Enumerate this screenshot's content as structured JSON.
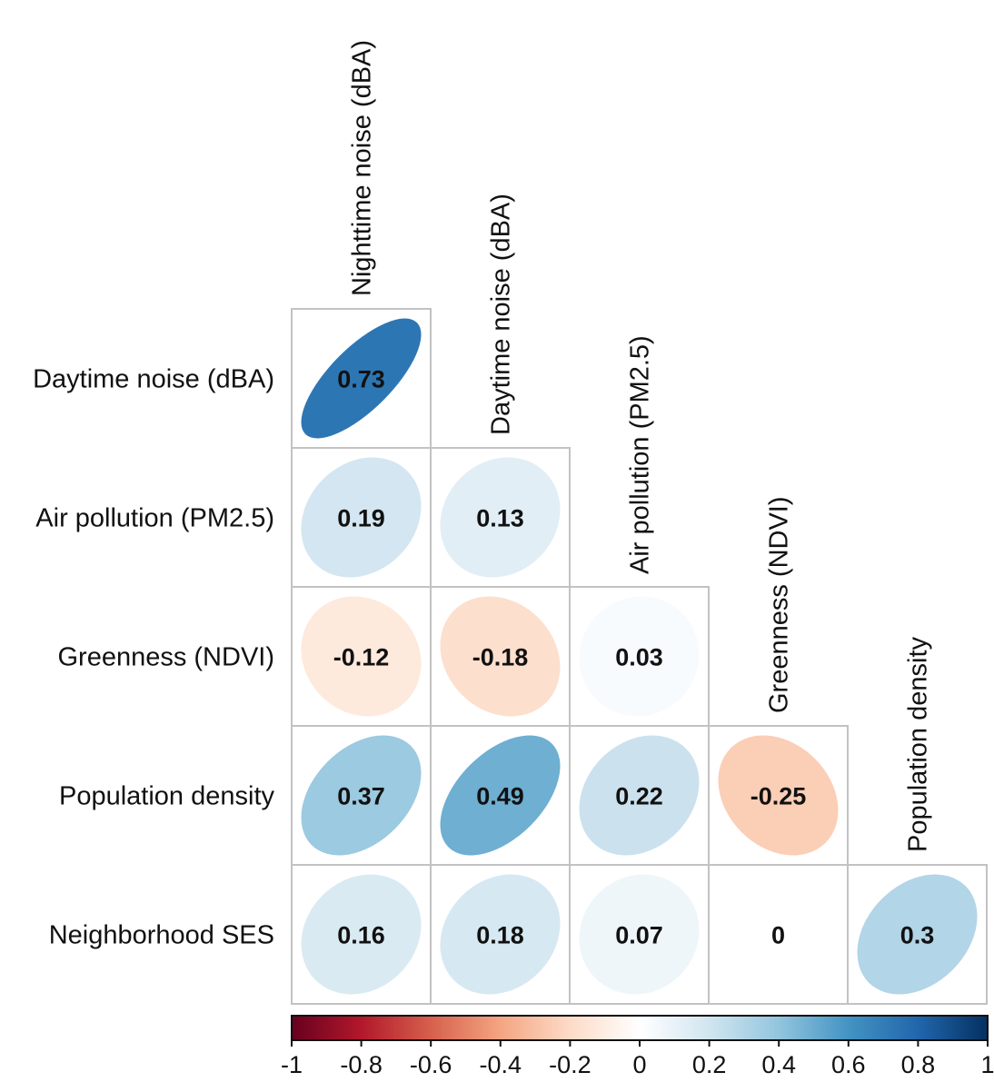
{
  "chart_data": {
    "type": "heatmap",
    "variant": "correlation-ellipse-lower-triangle",
    "title": "",
    "row_labels": [
      "Daytime noise (dBA)",
      "Air pollution (PM2.5)",
      "Greenness (NDVI)",
      "Population density",
      "Neighborhood SES"
    ],
    "col_labels": [
      "Nighttime noise (dBA)",
      "Daytime noise (dBA)",
      "Air pollution (PM2.5)",
      "Greenness (NDVI)",
      "Population density"
    ],
    "cells": [
      {
        "row": 0,
        "col": 0,
        "value": 0.73,
        "label": "0.73"
      },
      {
        "row": 1,
        "col": 0,
        "value": 0.19,
        "label": "0.19"
      },
      {
        "row": 1,
        "col": 1,
        "value": 0.13,
        "label": "0.13"
      },
      {
        "row": 2,
        "col": 0,
        "value": -0.12,
        "label": "-0.12"
      },
      {
        "row": 2,
        "col": 1,
        "value": -0.18,
        "label": "-0.18"
      },
      {
        "row": 2,
        "col": 2,
        "value": 0.03,
        "label": "0.03"
      },
      {
        "row": 3,
        "col": 0,
        "value": 0.37,
        "label": "0.37"
      },
      {
        "row": 3,
        "col": 1,
        "value": 0.49,
        "label": "0.49"
      },
      {
        "row": 3,
        "col": 2,
        "value": 0.22,
        "label": "0.22"
      },
      {
        "row": 3,
        "col": 3,
        "value": -0.25,
        "label": "-0.25"
      },
      {
        "row": 4,
        "col": 0,
        "value": 0.16,
        "label": "0.16"
      },
      {
        "row": 4,
        "col": 1,
        "value": 0.18,
        "label": "0.18"
      },
      {
        "row": 4,
        "col": 2,
        "value": 0.07,
        "label": "0.07"
      },
      {
        "row": 4,
        "col": 3,
        "value": 0,
        "label": "0"
      },
      {
        "row": 4,
        "col": 4,
        "value": 0.3,
        "label": "0.3"
      }
    ],
    "colorbar": {
      "range": [
        -1,
        1
      ],
      "ticks": [
        "-1",
        "-0.8",
        "-0.6",
        "-0.4",
        "-0.2",
        "0",
        "0.2",
        "0.4",
        "0.6",
        "0.8",
        "1"
      ],
      "colors": [
        "#67001f",
        "#b2182b",
        "#d6604d",
        "#f4a582",
        "#fddbc7",
        "#ffffff",
        "#d1e5f0",
        "#92c5de",
        "#4393c3",
        "#2166ac",
        "#053061"
      ],
      "placement": "bottom"
    }
  }
}
